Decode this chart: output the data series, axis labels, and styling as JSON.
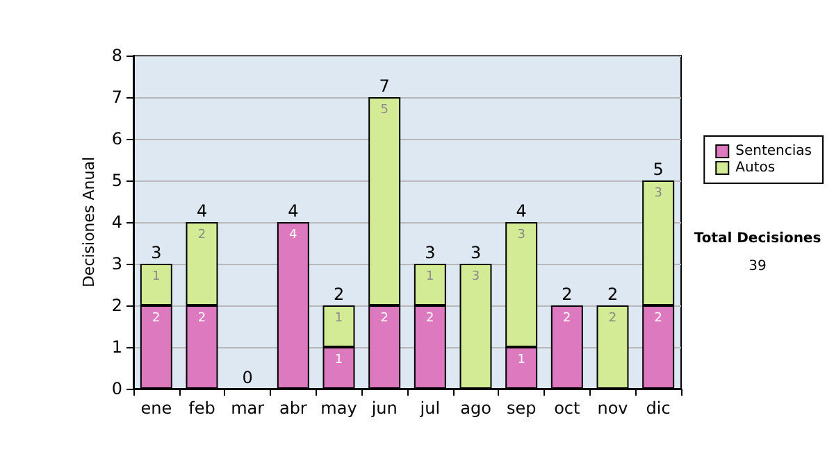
{
  "chart_data": {
    "type": "bar",
    "stacked": true,
    "ylabel": "Decisiones Anual",
    "categories": [
      "ene",
      "feb",
      "mar",
      "abr",
      "may",
      "jun",
      "jul",
      "ago",
      "sep",
      "oct",
      "nov",
      "dic"
    ],
    "series": [
      {
        "name": "Sentencias",
        "color": "#dd7abf",
        "values": [
          2,
          2,
          0,
          4,
          1,
          2,
          2,
          0,
          1,
          2,
          0,
          2
        ],
        "value_labels": [
          "2",
          "2",
          null,
          "4",
          "1",
          "2",
          "2",
          null,
          "1",
          "2",
          null,
          "2"
        ]
      },
      {
        "name": "Autos",
        "color": "#d4eb96",
        "values": [
          1,
          2,
          0,
          0,
          1,
          5,
          1,
          3,
          3,
          0,
          2,
          3
        ],
        "value_labels": [
          "1",
          "2",
          null,
          null,
          "1",
          "5",
          "1",
          "3",
          "3",
          null,
          "2",
          "3"
        ]
      }
    ],
    "totals": [
      "3",
      "4",
      "0",
      "4",
      "2",
      "7",
      "3",
      "3",
      "4",
      "2",
      "2",
      "5"
    ],
    "ylim": [
      0,
      8
    ],
    "yticks": [
      0,
      1,
      2,
      3,
      4,
      5,
      6,
      7,
      8
    ],
    "grid": "y",
    "legend": "right",
    "annotations": [
      "Total Decisiones",
      "39"
    ]
  }
}
